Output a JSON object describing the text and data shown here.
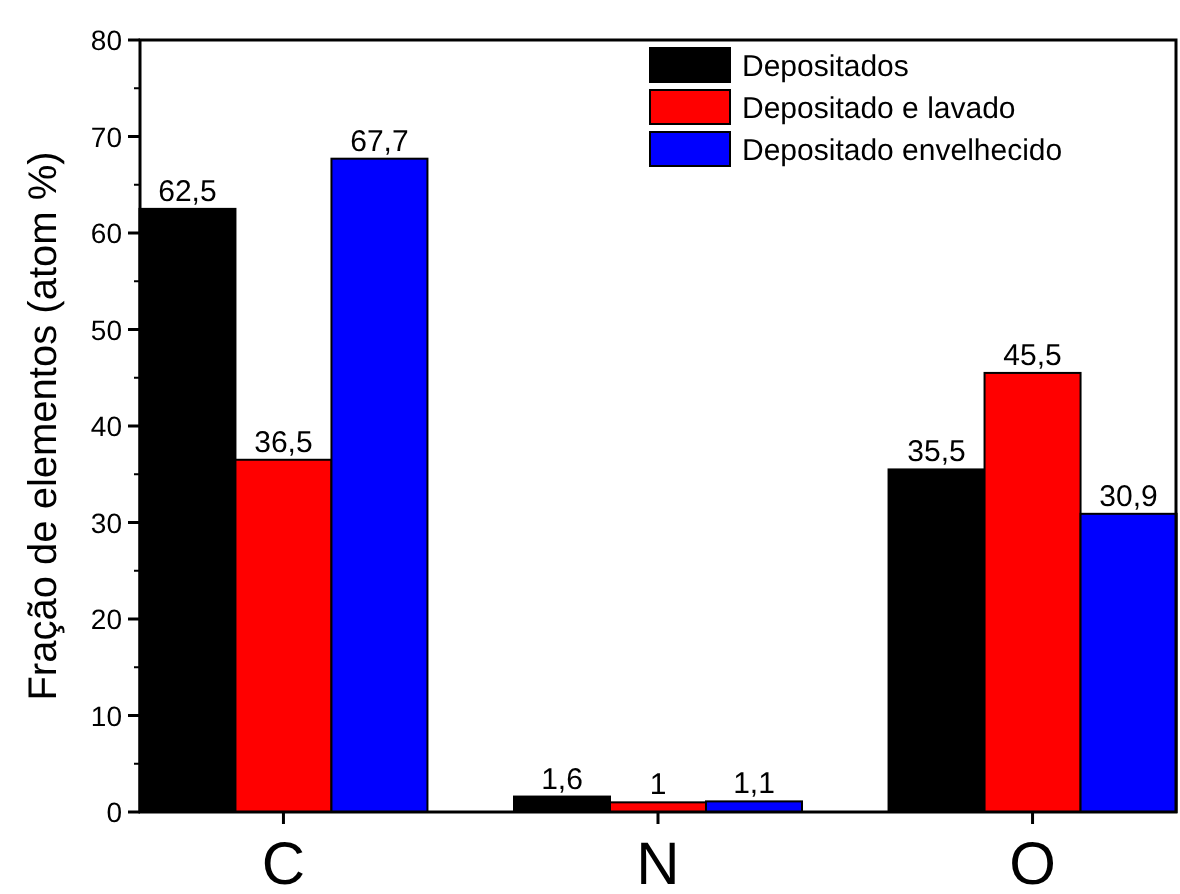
{
  "chart_data": {
    "type": "bar",
    "ylabel": "Fração de elementos (atom %)",
    "categories": [
      "C",
      "N",
      "O"
    ],
    "series": [
      {
        "name": "Depositados",
        "color": "#000000",
        "values": [
          62.5,
          1.6,
          35.5
        ],
        "value_labels": [
          "62,5",
          "1,6",
          "35,5"
        ]
      },
      {
        "name": "Depositado e lavado",
        "color": "#ff0000",
        "values": [
          36.5,
          1,
          45.5
        ],
        "value_labels": [
          "36,5",
          "1",
          "45,5"
        ]
      },
      {
        "name": "Depositado envelhecido",
        "color": "#0000ff",
        "values": [
          67.7,
          1.1,
          30.9
        ],
        "value_labels": [
          "67,7",
          "1,1",
          "30,9"
        ]
      }
    ],
    "ylim": [
      0,
      80
    ],
    "yticks": [
      0,
      10,
      20,
      30,
      40,
      50,
      60,
      70,
      80
    ],
    "legend": "top right",
    "grid": false
  }
}
